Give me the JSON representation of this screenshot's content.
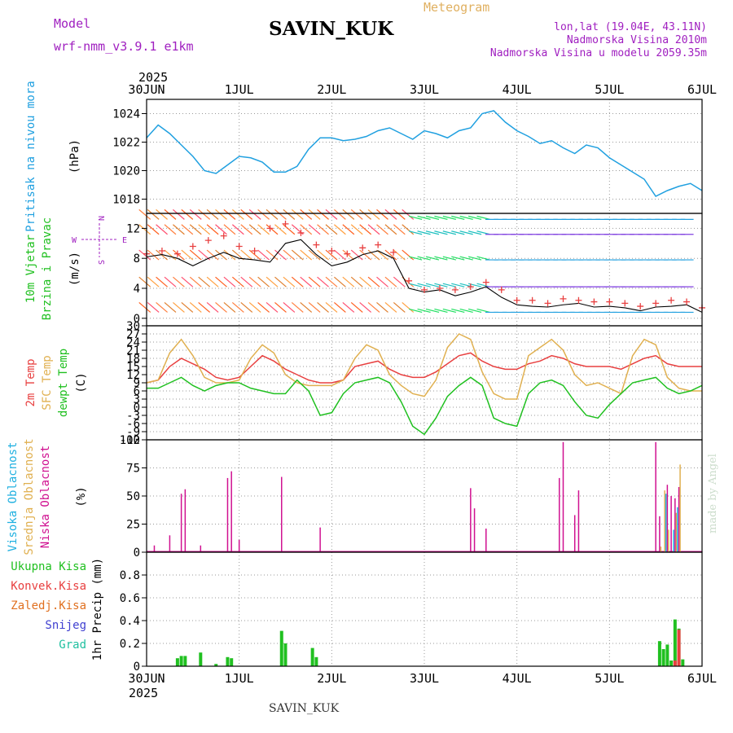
{
  "header": {
    "model_label": "Model",
    "model_version": "wrf-nmm_v3.9.1 e1km",
    "station": "SAVIN_KUK",
    "meteogram": "Meteogram",
    "lonlat": "lon,lat (19.04E, 43.11N)",
    "elevation": "Nadmorska Visina 2010m",
    "model_elevation": "Nadmorska Visina u modelu 2059.35m",
    "year_top": "2025",
    "year_bottom": "2025",
    "footer_station": "SAVIN_KUK",
    "made_by": "made by Angel"
  },
  "colors": {
    "pressure": "#20a0e0",
    "temp2m": "#e84040",
    "sfc": "#e0b050",
    "dew": "#20c020",
    "low_cloud": "#d01090",
    "mid_cloud": "#e0b050",
    "high_cloud": "#20b0e0",
    "total_precip": "#20c020",
    "conv_precip": "#e84040",
    "frz_precip": "#e07020",
    "snow": "#4040d0",
    "hail": "#20c0a0",
    "wind_label_green": "#20c020",
    "compass": "#a020c0"
  },
  "chart_data": [
    {
      "type": "line",
      "x_ticks": [
        "30JUN",
        "1JUL",
        "2JUL",
        "3JUL",
        "4JUL",
        "5JUL",
        "6JUL"
      ],
      "x_range_hours": [
        0,
        144
      ],
      "ylabel_colored": "Pritisak na nivou mora",
      "unit": "(hPa)",
      "ylim": [
        1017,
        1025
      ],
      "y_ticks": [
        1018,
        1020,
        1022,
        1024
      ],
      "series": [
        {
          "x": [
            0,
            3,
            6,
            9,
            12,
            15,
            18,
            21,
            24,
            27,
            30,
            33,
            36,
            39,
            42,
            45,
            48,
            51,
            54,
            57,
            60,
            63,
            66,
            69,
            72,
            75,
            78,
            81,
            84,
            87,
            90,
            93,
            96,
            99,
            102,
            105,
            108,
            111,
            114,
            117,
            120,
            123,
            126,
            129,
            132,
            135,
            138,
            141,
            144
          ],
          "y": [
            1022.3,
            1023.2,
            1022.6,
            1021.8,
            1021.0,
            1020.0,
            1019.8,
            1020.4,
            1021.0,
            1020.9,
            1020.6,
            1019.9,
            1019.9,
            1020.3,
            1021.5,
            1022.3,
            1022.3,
            1022.1,
            1022.2,
            1022.4,
            1022.8,
            1023.0,
            1022.6,
            1022.2,
            1022.8,
            1022.6,
            1022.3,
            1022.8,
            1023.0,
            1024.0,
            1024.2,
            1023.4,
            1022.8,
            1022.4,
            1021.9,
            1022.1,
            1021.6,
            1021.2,
            1021.8,
            1021.6,
            1020.9,
            1020.4,
            1019.9,
            1019.4,
            1018.2,
            1018.6,
            1018.9,
            1019.1,
            1018.6
          ]
        }
      ]
    },
    {
      "type": "scatter",
      "x_ticks": [
        "30JUN",
        "1JUL",
        "2JUL",
        "3JUL",
        "4JUL",
        "5JUL",
        "6JUL"
      ],
      "x_range_hours": [
        0,
        144
      ],
      "ylabel_colored": "10m Vjetar Brzina i Pravac",
      "unit": "(m/s)",
      "ylim": [
        -1,
        14
      ],
      "y_ticks": [
        0,
        4,
        8,
        12
      ],
      "compass": {
        "n": "N",
        "s": "S",
        "w": "W",
        "e": "E"
      },
      "series": [
        {
          "name": "speed",
          "x": [
            0,
            4,
            8,
            12,
            16,
            20,
            24,
            28,
            32,
            36,
            40,
            44,
            48,
            52,
            56,
            60,
            64,
            68,
            72,
            76,
            80,
            84,
            88,
            92,
            96,
            100,
            104,
            108,
            112,
            116,
            120,
            124,
            128,
            132,
            136,
            140,
            144
          ],
          "y": [
            8.2,
            8.5,
            8.0,
            7.0,
            8.0,
            8.8,
            8.0,
            7.8,
            7.5,
            10.0,
            10.5,
            8.5,
            7.0,
            7.5,
            8.5,
            9.0,
            8.0,
            4.0,
            3.5,
            3.8,
            3.0,
            3.5,
            4.2,
            2.8,
            1.8,
            1.6,
            1.5,
            1.8,
            2.0,
            1.5,
            1.6,
            1.4,
            1.0,
            1.5,
            1.6,
            1.8,
            0.8
          ]
        },
        {
          "name": "gust",
          "x": [
            0,
            4,
            8,
            12,
            16,
            20,
            24,
            28,
            32,
            36,
            40,
            44,
            48,
            52,
            56,
            60,
            64,
            68,
            72,
            76,
            80,
            84,
            88,
            92,
            96,
            100,
            104,
            108,
            112,
            116,
            120,
            124,
            128,
            132,
            136,
            140,
            144
          ],
          "y": [
            8.6,
            9.0,
            8.6,
            9.6,
            10.4,
            11.0,
            9.6,
            9.0,
            12.0,
            12.6,
            11.4,
            9.8,
            9.0,
            8.6,
            9.4,
            9.8,
            8.8,
            5.0,
            3.8,
            4.0,
            3.8,
            4.2,
            4.8,
            3.8,
            2.4,
            2.4,
            2.0,
            2.6,
            2.4,
            2.2,
            2.2,
            2.0,
            1.6,
            2.0,
            2.4,
            2.2,
            1.4
          ]
        }
      ]
    },
    {
      "type": "line",
      "x_ticks": [
        "30JUN",
        "1JUL",
        "2JUL",
        "3JUL",
        "4JUL",
        "5JUL",
        "6JUL"
      ],
      "x_range_hours": [
        0,
        144
      ],
      "ylabel_colored": [
        "2m Temp",
        "SFC Temp",
        "dewpt Temp"
      ],
      "unit": "(C)",
      "ylim": [
        -12,
        30
      ],
      "y_ticks": [
        -12,
        -9,
        -6,
        -3,
        0,
        3,
        6,
        9,
        12,
        15,
        18,
        21,
        24,
        27,
        30
      ],
      "series": [
        {
          "name": "2m Temp",
          "x": [
            0,
            3,
            6,
            9,
            12,
            15,
            18,
            21,
            24,
            27,
            30,
            33,
            36,
            39,
            42,
            45,
            48,
            51,
            54,
            57,
            60,
            63,
            66,
            69,
            72,
            75,
            78,
            81,
            84,
            87,
            90,
            93,
            96,
            99,
            102,
            105,
            108,
            111,
            114,
            117,
            120,
            123,
            126,
            129,
            132,
            135,
            138,
            141,
            144
          ],
          "y": [
            9,
            10,
            15,
            18,
            16,
            14,
            11,
            10,
            11,
            15,
            19,
            17,
            14,
            12,
            10,
            9,
            9,
            10,
            15,
            16,
            17,
            14,
            12,
            11,
            11,
            13,
            16,
            19,
            20,
            17,
            15,
            14,
            14,
            16,
            17,
            19,
            18,
            16,
            15,
            15,
            15,
            14,
            16,
            18,
            19,
            16,
            15,
            15,
            15
          ]
        },
        {
          "name": "SFC Temp",
          "x": [
            0,
            3,
            6,
            9,
            12,
            15,
            18,
            21,
            24,
            27,
            30,
            33,
            36,
            39,
            42,
            45,
            48,
            51,
            54,
            57,
            60,
            63,
            66,
            69,
            72,
            75,
            78,
            81,
            84,
            87,
            90,
            93,
            96,
            99,
            102,
            105,
            108,
            111,
            114,
            117,
            120,
            123,
            126,
            129,
            132,
            135,
            138,
            141,
            144
          ],
          "y": [
            9,
            10,
            20,
            25,
            19,
            11,
            9,
            9,
            10,
            18,
            23,
            20,
            12,
            9,
            8,
            8,
            8,
            10,
            18,
            23,
            21,
            12,
            8,
            5,
            4,
            10,
            22,
            27,
            25,
            13,
            5,
            3,
            3,
            19,
            22,
            25,
            21,
            12,
            8,
            9,
            7,
            5,
            19,
            25,
            23,
            11,
            7,
            6,
            6
          ]
        },
        {
          "name": "dewpt Temp",
          "x": [
            0,
            3,
            6,
            9,
            12,
            15,
            18,
            21,
            24,
            27,
            30,
            33,
            36,
            39,
            42,
            45,
            48,
            51,
            54,
            57,
            60,
            63,
            66,
            69,
            72,
            75,
            78,
            81,
            84,
            87,
            90,
            93,
            96,
            99,
            102,
            105,
            108,
            111,
            114,
            117,
            120,
            123,
            126,
            129,
            132,
            135,
            138,
            141,
            144
          ],
          "y": [
            7,
            7,
            9,
            11,
            8,
            6,
            8,
            9,
            9,
            7,
            6,
            5,
            5,
            10,
            6,
            -3,
            -2,
            5,
            9,
            10,
            11,
            9,
            2,
            -7,
            -10,
            -4,
            4,
            8,
            11,
            8,
            -4,
            -6,
            -7,
            5,
            9,
            10,
            8,
            2,
            -3,
            -4,
            1,
            5,
            9,
            10,
            11,
            7,
            5,
            6,
            8
          ]
        }
      ]
    },
    {
      "type": "bar",
      "x_ticks": [
        "30JUN",
        "1JUL",
        "2JUL",
        "3JUL",
        "4JUL",
        "5JUL",
        "6JUL"
      ],
      "x_range_hours": [
        0,
        144
      ],
      "ylabel_colored": [
        "Visoka Oblacnost",
        "Srednja Oblacnost",
        "Niska Oblacnost"
      ],
      "unit": "(%)",
      "ylim": [
        0,
        100
      ],
      "y_ticks": [
        0,
        25,
        50,
        75,
        100
      ],
      "series": [
        {
          "name": "Niska Oblacnost",
          "x": [
            2,
            6,
            9,
            10,
            14,
            21,
            22,
            24,
            35,
            45,
            84,
            85,
            88,
            107,
            108,
            111,
            112,
            132,
            133,
            135,
            136,
            137,
            138
          ],
          "values": [
            6,
            15,
            52,
            56,
            6,
            66,
            72,
            11,
            67,
            22,
            57,
            39,
            21,
            66,
            98,
            33,
            55,
            98,
            32,
            60,
            50,
            48,
            58
          ]
        },
        {
          "name": "Srednja Oblacnost",
          "x": [
            133,
            134,
            135,
            137,
            138
          ],
          "values": [
            5,
            55,
            20,
            35,
            78
          ]
        },
        {
          "name": "Visoka Oblacnost",
          "x": [
            134,
            136,
            137
          ],
          "values": [
            52,
            20,
            40
          ]
        }
      ]
    },
    {
      "type": "bar",
      "x_ticks": [
        "30JUN",
        "1JUL",
        "2JUL",
        "3JUL",
        "4JUL",
        "5JUL",
        "6JUL"
      ],
      "x_range_hours": [
        0,
        144
      ],
      "legend": [
        "Ukupna Kisa",
        "Konvek.Kisa",
        "Zaledj.Kisa",
        "Snijeg",
        "Grad"
      ],
      "ylabel": "1hr Precip (mm)",
      "ylim": [
        0,
        1.0
      ],
      "y_ticks": [
        0,
        0.2,
        0.4,
        0.6,
        0.8
      ],
      "series": [
        {
          "name": "Ukupna Kisa",
          "x": [
            8,
            9,
            10,
            14,
            18,
            21,
            22,
            35,
            36,
            43,
            44,
            133,
            134,
            135,
            136,
            137,
            138,
            139
          ],
          "values": [
            0.07,
            0.09,
            0.09,
            0.12,
            0.02,
            0.08,
            0.07,
            0.31,
            0.2,
            0.16,
            0.08,
            0.22,
            0.15,
            0.19,
            0.05,
            0.41,
            0.33,
            0.06
          ]
        },
        {
          "name": "Konvek.Kisa",
          "x": [
            137,
            138
          ],
          "values": [
            0.05,
            0.32
          ]
        }
      ]
    }
  ]
}
